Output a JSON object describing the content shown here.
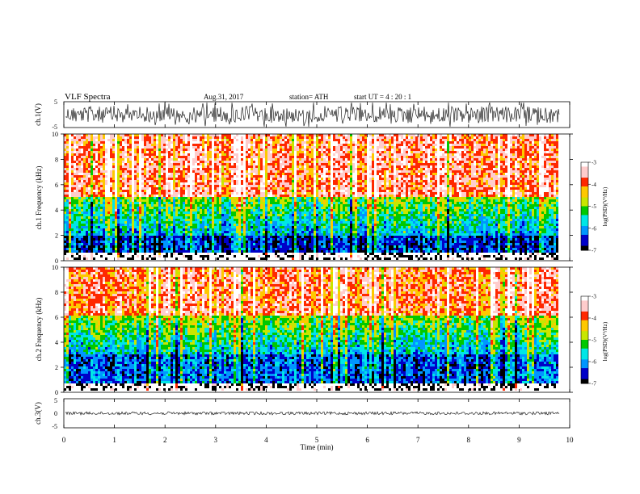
{
  "header": {
    "title": "VLF  Spectra",
    "date": "Aug.31, 2017",
    "station": "station= ATH",
    "start_ut": "start  UT  =   4  : 20 : 1"
  },
  "colors": {
    "colormap": [
      "#000000",
      "#0000c8",
      "#0096ff",
      "#00e6e6",
      "#00c800",
      "#c8e600",
      "#ffc800",
      "#ff2800",
      "#ffcccc",
      "#ffffff"
    ],
    "trace": "#000000",
    "gap": "#ffffff"
  },
  "chart_data": [
    {
      "type": "line",
      "panel": "ch1-waveform",
      "ylabel": "ch.1(V)",
      "ylim": [
        -5,
        5
      ],
      "y_ticks": [
        "5",
        "-5"
      ],
      "xlim": [
        0,
        10
      ],
      "data_until_min": 9.8,
      "description_values": {
        "mean_V": 0,
        "typical_amplitude_V": 1.2,
        "spike_amplitude_V": 3
      }
    },
    {
      "type": "heatmap",
      "panel": "ch1-spectrogram",
      "ylabel": "ch.1 Frequency  (kHz)",
      "ylim": [
        0,
        10
      ],
      "y_ticks": [
        "0",
        "2",
        "4",
        "6",
        "8",
        "10"
      ],
      "xlim": [
        0,
        10
      ],
      "data_until_min": 9.8,
      "colorbar": {
        "label": "log(PSD)(V²/Hz)",
        "range": [
          -7,
          -3
        ],
        "ticks": [
          "-3",
          "-4",
          "-5",
          "-6",
          "-7"
        ]
      },
      "bands_kHz": {
        "strong_low_band": [
          0,
          0.5
        ],
        "weak_band": [
          0.5,
          2.0
        ],
        "transition": [
          2.0,
          5.0
        ],
        "high_power": [
          5.0,
          10.0
        ]
      },
      "level_log_psd": {
        "low": -6.5,
        "mid": -5.3,
        "high": -3.7
      }
    },
    {
      "type": "heatmap",
      "panel": "ch2-spectrogram",
      "ylabel": "ch.2 Frequency  (kHz)",
      "ylim": [
        0,
        10
      ],
      "y_ticks": [
        "0",
        "2",
        "4",
        "6",
        "8",
        "10"
      ],
      "xlim": [
        0,
        10
      ],
      "data_until_min": 9.8,
      "colorbar": {
        "label": "log(PSD)(V²/Hz)",
        "range": [
          -7,
          -3
        ],
        "ticks": [
          "-3",
          "-4",
          "-5",
          "-6",
          "-7"
        ]
      },
      "bands_kHz": {
        "strong_low_band": [
          0,
          0.5
        ],
        "weak_band": [
          0.5,
          3.0
        ],
        "transition": [
          3.0,
          6.0
        ],
        "high_power": [
          6.0,
          10.0
        ]
      },
      "level_log_psd": {
        "low": -6.3,
        "mid": -5.2,
        "high": -3.8
      }
    },
    {
      "type": "line",
      "panel": "ch3-waveform",
      "ylabel": "ch.3(V)",
      "ylim": [
        -5,
        5
      ],
      "y_ticks": [
        "5",
        "0",
        "-5"
      ],
      "xlim": [
        0,
        10
      ],
      "data_until_min": 9.8,
      "description_values": {
        "mean_V": 0,
        "typical_amplitude_V": 0.15
      }
    }
  ],
  "x_axis": {
    "label": "Time  (min)",
    "range": [
      0,
      10
    ],
    "ticks": [
      "0",
      "1",
      "2",
      "3",
      "4",
      "5",
      "6",
      "7",
      "8",
      "9",
      "10"
    ]
  }
}
